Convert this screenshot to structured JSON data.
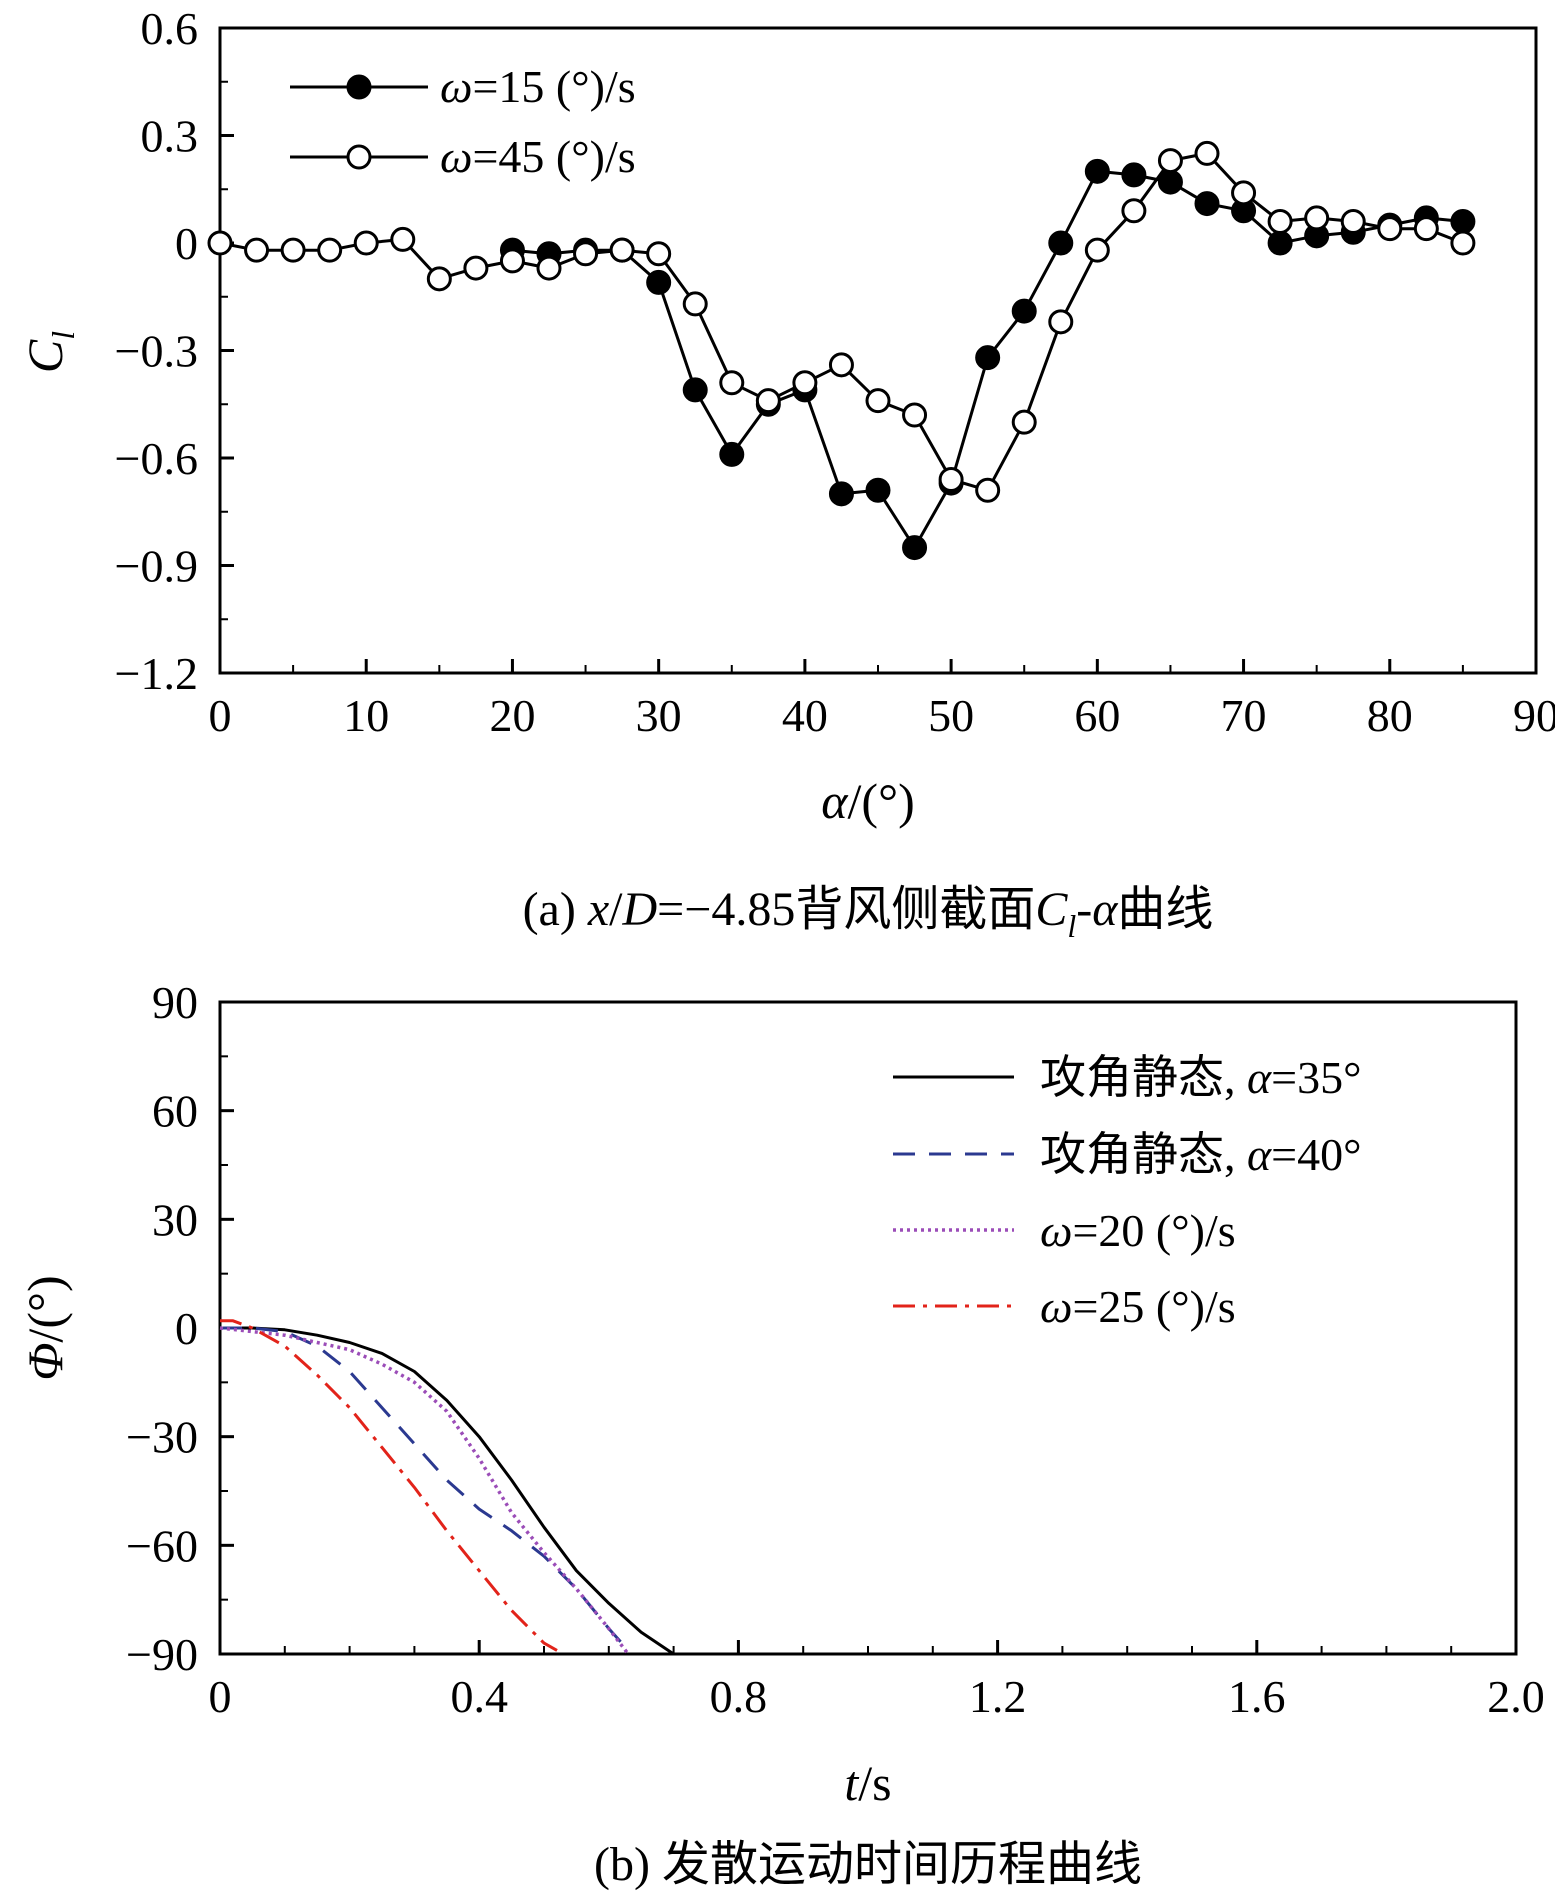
{
  "chart_data": [
    {
      "type": "line",
      "caption": "(a) x/D=−4.85背风侧截面C_l-α曲线",
      "caption_parts": {
        "prefix": "(a) ",
        "var1": "x",
        "mid1": "/",
        "var2": "D",
        "mid2": "=−4.85背风侧截面",
        "var3": "C",
        "sub": "l",
        "mid3": "-",
        "var4": "α",
        "suffix": "曲线"
      },
      "xlabel": "α/(°)",
      "xlabel_parts": {
        "var": "α",
        "unit": "/(°)"
      },
      "ylabel": "C_l",
      "ylabel_parts": {
        "var": "C",
        "sub": "l"
      },
      "xlim": [
        0,
        90
      ],
      "ylim": [
        -1.2,
        0.6
      ],
      "x_ticks": [
        0,
        10,
        20,
        30,
        40,
        50,
        60,
        70,
        80,
        90
      ],
      "x_tick_labels": [
        "0",
        "10",
        "20",
        "30",
        "40",
        "50",
        "60",
        "70",
        "80",
        "90"
      ],
      "y_ticks": [
        0.6,
        0.3,
        0,
        -0.3,
        -0.6,
        -0.9,
        -1.2
      ],
      "y_tick_labels": [
        "0.6",
        "0.3",
        "0",
        "−0.3",
        "−0.6",
        "−0.9",
        "−1.2"
      ],
      "grid": false,
      "legend_position": "top-left",
      "series": [
        {
          "name": "ω=15 (°)/s",
          "name_parts": {
            "var": "ω",
            "rest": "=15 (°)/s"
          },
          "marker": "filled-circle",
          "color": "#000000",
          "x": [
            20,
            22.5,
            25,
            27.5,
            30,
            32.5,
            35,
            37.5,
            40,
            42.5,
            45,
            47.5,
            50,
            52.5,
            55,
            57.5,
            60,
            62.5,
            65,
            67.5,
            70,
            72.5,
            75,
            77.5,
            80,
            82.5,
            85
          ],
          "y": [
            -0.02,
            -0.03,
            -0.02,
            -0.02,
            -0.11,
            -0.41,
            -0.59,
            -0.45,
            -0.41,
            -0.7,
            -0.69,
            -0.85,
            -0.67,
            -0.32,
            -0.19,
            0.0,
            0.2,
            0.19,
            0.17,
            0.11,
            0.09,
            0.0,
            0.02,
            0.03,
            0.05,
            0.07,
            0.06
          ]
        },
        {
          "name": "ω=45 (°)/s",
          "name_parts": {
            "var": "ω",
            "rest": "=45 (°)/s"
          },
          "marker": "open-circle",
          "color": "#000000",
          "x": [
            0,
            2.5,
            5,
            7.5,
            10,
            12.5,
            15,
            17.5,
            20,
            22.5,
            25,
            27.5,
            30,
            32.5,
            35,
            37.5,
            40,
            42.5,
            45,
            47.5,
            50,
            52.5,
            55,
            57.5,
            60,
            62.5,
            65,
            67.5,
            70,
            72.5,
            75,
            77.5,
            80,
            82.5,
            85
          ],
          "y": [
            0.0,
            -0.02,
            -0.02,
            -0.02,
            0.0,
            0.01,
            -0.1,
            -0.07,
            -0.05,
            -0.07,
            -0.03,
            -0.02,
            -0.03,
            -0.17,
            -0.39,
            -0.44,
            -0.39,
            -0.34,
            -0.44,
            -0.48,
            -0.66,
            -0.69,
            -0.5,
            -0.22,
            -0.02,
            0.09,
            0.23,
            0.25,
            0.14,
            0.06,
            0.07,
            0.06,
            0.04,
            0.04,
            0.0
          ]
        }
      ]
    },
    {
      "type": "line",
      "caption": "(b) 发散运动时间历程曲线",
      "xlabel": "t/s",
      "xlabel_parts": {
        "var": "t",
        "unit": "/s"
      },
      "ylabel": "Φ/(°)",
      "ylabel_parts": {
        "var": "Φ",
        "unit": "/(°)"
      },
      "xlim": [
        0,
        2.0
      ],
      "ylim": [
        -90,
        90
      ],
      "x_ticks": [
        0,
        0.4,
        0.8,
        1.2,
        1.6,
        2.0
      ],
      "x_tick_labels": [
        "0",
        "0.4",
        "0.8",
        "1.2",
        "1.6",
        "2.0"
      ],
      "y_ticks": [
        90,
        60,
        30,
        0,
        -30,
        -60,
        -90
      ],
      "y_tick_labels": [
        "90",
        "60",
        "30",
        "0",
        "−30",
        "−60",
        "−90"
      ],
      "grid": false,
      "legend_position": "top-right",
      "series": [
        {
          "name": "攻角静态, α=35°",
          "name_parts": {
            "pre": "攻角静态, ",
            "var": "α",
            "rest": "=35°"
          },
          "style": "solid",
          "color": "#000000",
          "x": [
            0,
            0.05,
            0.1,
            0.15,
            0.2,
            0.25,
            0.3,
            0.35,
            0.4,
            0.45,
            0.5,
            0.55,
            0.6,
            0.65,
            0.7
          ],
          "y": [
            0,
            0,
            -0.5,
            -2,
            -4,
            -7,
            -12,
            -20,
            -30,
            -42,
            -55,
            -67,
            -76,
            -84,
            -90
          ]
        },
        {
          "name": "攻角静态, α=40°",
          "name_parts": {
            "pre": "攻角静态, ",
            "var": "α",
            "rest": "=40°"
          },
          "style": "dashed",
          "color": "#2b3990",
          "x": [
            0,
            0.05,
            0.1,
            0.15,
            0.2,
            0.25,
            0.3,
            0.35,
            0.4,
            0.45,
            0.5,
            0.55,
            0.6,
            0.62
          ],
          "y": [
            0,
            0,
            -1,
            -5,
            -12,
            -22,
            -32,
            -42,
            -50,
            -56,
            -63,
            -72,
            -83,
            -87
          ]
        },
        {
          "name": "ω=20 (°)/s",
          "name_parts": {
            "var": "ω",
            "rest": "=20 (°)/s"
          },
          "style": "dotted",
          "color": "#9b4db8",
          "x": [
            0,
            0.05,
            0.1,
            0.15,
            0.2,
            0.25,
            0.3,
            0.35,
            0.4,
            0.45,
            0.5,
            0.55,
            0.6,
            0.63
          ],
          "y": [
            0,
            -1,
            -2,
            -4,
            -6,
            -10,
            -15,
            -23,
            -36,
            -51,
            -62,
            -72,
            -83,
            -90
          ]
        },
        {
          "name": "ω=25 (°)/s",
          "name_parts": {
            "var": "ω",
            "rest": "=25 (°)/s"
          },
          "style": "dashdot",
          "color": "#e2231a",
          "x": [
            0,
            0.02,
            0.05,
            0.1,
            0.15,
            0.2,
            0.25,
            0.3,
            0.35,
            0.4,
            0.45,
            0.5,
            0.52
          ],
          "y": [
            2,
            2,
            0,
            -5,
            -13,
            -22,
            -33,
            -44,
            -56,
            -67,
            -78,
            -87,
            -89
          ]
        }
      ]
    }
  ]
}
